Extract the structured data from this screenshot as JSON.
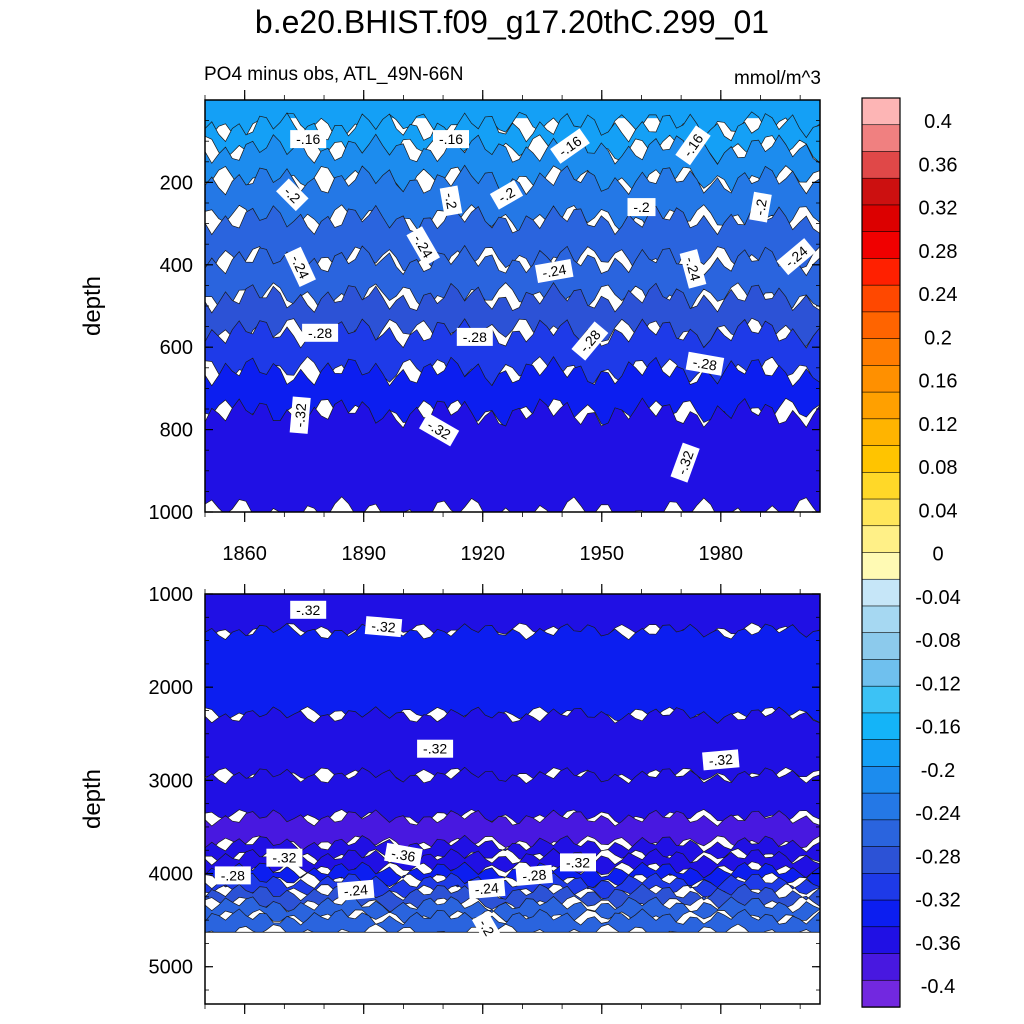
{
  "title": "b.e20.BHIST.f09_g17.20thC.299_01",
  "subtitle_left": "PO4 minus obs, ATL_49N-66N",
  "subtitle_right": "mmol/m^3",
  "chart_data": [
    {
      "type": "heatmap",
      "panel": "upper",
      "variable": "PO4 minus obs",
      "ylabel": "depth",
      "xlim": [
        1850,
        2005
      ],
      "ylim": [
        1000,
        0
      ],
      "x_ticks": [
        1860,
        1890,
        1920,
        1950,
        1980
      ],
      "y_ticks": [
        200,
        400,
        600,
        800,
        1000
      ],
      "layers": [
        {
          "level": -0.16,
          "depth": 15
        },
        {
          "level": -0.16,
          "depth": 65
        },
        {
          "level": -0.18,
          "depth": 120
        },
        {
          "level": -0.2,
          "depth": 195
        },
        {
          "level": -0.22,
          "depth": 290
        },
        {
          "level": -0.24,
          "depth": 390
        },
        {
          "level": -0.26,
          "depth": 480
        },
        {
          "level": -0.28,
          "depth": 565
        },
        {
          "level": -0.3,
          "depth": 660
        },
        {
          "level": -0.32,
          "depth": 760
        }
      ],
      "contour_labels": [
        {
          "text": "-.16",
          "x": 1876,
          "y": 95,
          "rot": 0
        },
        {
          "text": "-.16",
          "x": 1912,
          "y": 95,
          "rot": 0
        },
        {
          "text": "-.16",
          "x": 1942,
          "y": 112,
          "rot": -35
        },
        {
          "text": "-.16",
          "x": 1973,
          "y": 110,
          "rot": -55
        },
        {
          "text": "-.2",
          "x": 1872,
          "y": 230,
          "rot": 45
        },
        {
          "text": "-.2",
          "x": 1912,
          "y": 245,
          "rot": 80
        },
        {
          "text": "-.2",
          "x": 1926,
          "y": 230,
          "rot": -30
        },
        {
          "text": "-.2",
          "x": 1960,
          "y": 260,
          "rot": 0
        },
        {
          "text": "-.2",
          "x": 1990,
          "y": 260,
          "rot": -80
        },
        {
          "text": "-.24",
          "x": 1874,
          "y": 405,
          "rot": 65
        },
        {
          "text": "-.24",
          "x": 1905,
          "y": 355,
          "rot": 60
        },
        {
          "text": "-.24",
          "x": 1938,
          "y": 415,
          "rot": -10
        },
        {
          "text": "-.24",
          "x": 1973,
          "y": 410,
          "rot": 75
        },
        {
          "text": "-.24",
          "x": 1999,
          "y": 380,
          "rot": -40
        },
        {
          "text": "-.28",
          "x": 1879,
          "y": 565,
          "rot": 0
        },
        {
          "text": "-.28",
          "x": 1918,
          "y": 575,
          "rot": 0
        },
        {
          "text": "-.28",
          "x": 1947,
          "y": 585,
          "rot": -50
        },
        {
          "text": "-.28",
          "x": 1976,
          "y": 640,
          "rot": 10
        },
        {
          "text": "-.32",
          "x": 1874,
          "y": 765,
          "rot": -85
        },
        {
          "text": "-.32",
          "x": 1909,
          "y": 800,
          "rot": 30
        },
        {
          "text": "-.32",
          "x": 1971,
          "y": 880,
          "rot": -70
        }
      ]
    },
    {
      "type": "heatmap",
      "panel": "lower",
      "variable": "PO4 minus obs",
      "ylabel": "depth",
      "xlim": [
        1850,
        2005
      ],
      "ylim": [
        5400,
        1000
      ],
      "y_ticks": [
        1000,
        2000,
        3000,
        4000,
        5000
      ],
      "data_bottom": 4630,
      "layers": [
        {
          "level": -0.32,
          "depth": 1000
        },
        {
          "level": -0.3,
          "depth": 1400
        },
        {
          "level": -0.32,
          "depth": 2300
        },
        {
          "level": -0.34,
          "depth": 2950
        },
        {
          "level": -0.36,
          "depth": 3400
        },
        {
          "level": -0.34,
          "depth": 3680
        },
        {
          "level": -0.32,
          "depth": 3820
        },
        {
          "level": -0.3,
          "depth": 3960
        },
        {
          "level": -0.28,
          "depth": 4080
        },
        {
          "level": -0.26,
          "depth": 4200
        },
        {
          "level": -0.24,
          "depth": 4330
        },
        {
          "level": -0.22,
          "depth": 4470
        }
      ],
      "contour_labels": [
        {
          "text": "-.32",
          "x": 1876,
          "y": 1170,
          "rot": 0
        },
        {
          "text": "-.32",
          "x": 1895,
          "y": 1350,
          "rot": 5
        },
        {
          "text": "-.32",
          "x": 1908,
          "y": 2660,
          "rot": 0
        },
        {
          "text": "-.32",
          "x": 1980,
          "y": 2780,
          "rot": -5
        },
        {
          "text": "-.32",
          "x": 1870,
          "y": 3830,
          "rot": 0
        },
        {
          "text": "-.36",
          "x": 1900,
          "y": 3800,
          "rot": 10
        },
        {
          "text": "-.32",
          "x": 1944,
          "y": 3880,
          "rot": 0
        },
        {
          "text": "-.28",
          "x": 1857,
          "y": 4020,
          "rot": 0
        },
        {
          "text": "-.28",
          "x": 1933,
          "y": 4020,
          "rot": -5
        },
        {
          "text": "-.24",
          "x": 1888,
          "y": 4180,
          "rot": -5
        },
        {
          "text": "-.24",
          "x": 1921,
          "y": 4160,
          "rot": -5
        },
        {
          "text": "-.2",
          "x": 1921,
          "y": 4580,
          "rot": 60
        }
      ]
    }
  ],
  "colorbar": {
    "labels": [
      "0.4",
      "0.36",
      "0.32",
      "0.28",
      "0.24",
      "0.2",
      "0.16",
      "0.12",
      "0.08",
      "0.04",
      "0",
      "-0.04",
      "-0.08",
      "-0.12",
      "-0.16",
      "-0.2",
      "-0.24",
      "-0.28",
      "-0.32",
      "-0.36",
      "-0.4"
    ],
    "colors": [
      "#fdb5b5",
      "#f08080",
      "#e04848",
      "#cc1010",
      "#dc0000",
      "#f00000",
      "#ff2000",
      "#ff4800",
      "#ff6400",
      "#ff7c00",
      "#ff9000",
      "#ffa000",
      "#ffb400",
      "#ffc400",
      "#ffd828",
      "#ffe65a",
      "#fff087",
      "#fffab4",
      "#c6e6f8",
      "#a6d8f2",
      "#8ccaec",
      "#6fc0ee",
      "#3cc2f5",
      "#14b4f8",
      "#14a0f6",
      "#1c8cee",
      "#2478e6",
      "#2a64de",
      "#2c52d6",
      "#1e3ae8",
      "#0c1ef0",
      "#2010e4",
      "#4818e0",
      "#7228e0"
    ]
  }
}
